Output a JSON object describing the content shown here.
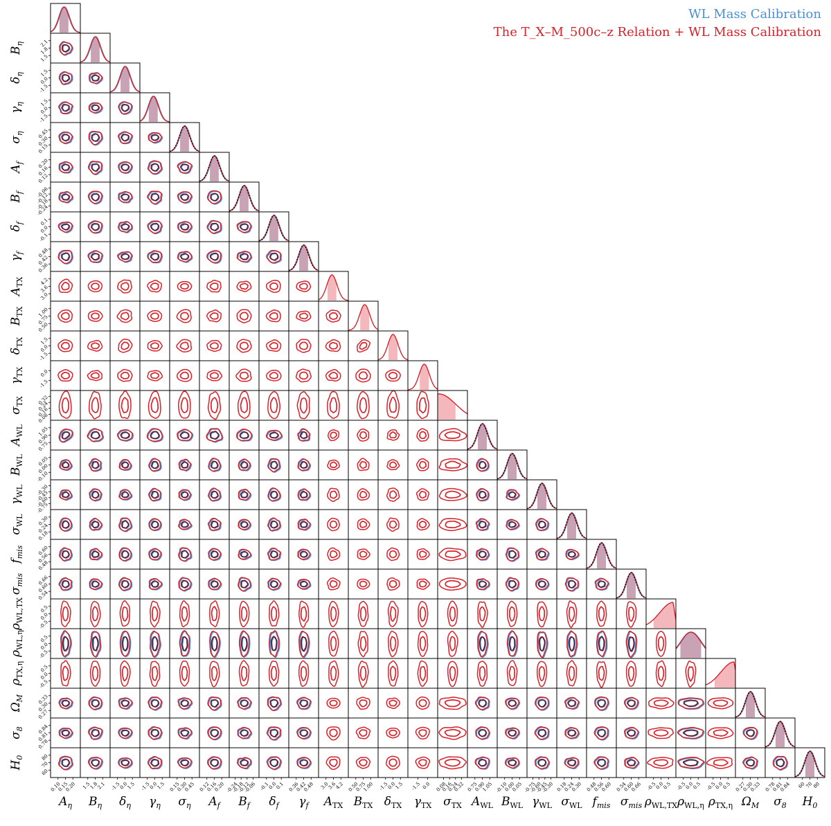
{
  "chart_data": {
    "type": "corner",
    "legend": {
      "placement": "top-right",
      "entries": [
        {
          "label": "WL Mass Calibration",
          "color": "#4a8fd1"
        },
        {
          "label": "The T_X–M_500c–z Relation + WL Mass Calibration",
          "color": "#d6222a"
        }
      ]
    },
    "parameters": [
      {
        "symbol": "A",
        "sub": "η",
        "ticks": [
          "0.10",
          "0.15",
          "0.20"
        ]
      },
      {
        "symbol": "B",
        "sub": "η",
        "ticks": [
          "1.5",
          "1.8",
          "2.1"
        ]
      },
      {
        "symbol": "δ",
        "sub": "η",
        "ticks": [
          "-1.5",
          "0.0",
          "1.5"
        ]
      },
      {
        "symbol": "γ",
        "sub": "η",
        "ticks": [
          "-1.5",
          "0.0",
          "1.5"
        ]
      },
      {
        "symbol": "σ",
        "sub": "η",
        "ticks": [
          "0.15",
          "0.30",
          "0.45"
        ]
      },
      {
        "symbol": "A",
        "sub": "f",
        "ticks": [
          "0.12",
          "0.16",
          "0.20"
        ]
      },
      {
        "symbol": "B",
        "sub": "f",
        "ticks": [
          "-0.24",
          "-0.18",
          "-0.12",
          "-0.06"
        ]
      },
      {
        "symbol": "δ",
        "sub": "f",
        "ticks": [
          "-0.1",
          "0.0",
          "0.1"
        ]
      },
      {
        "symbol": "γ",
        "sub": "f",
        "ticks": [
          "0.36",
          "0.42",
          "0.48"
        ]
      },
      {
        "symbol": "A",
        "sub": "TX",
        "ticks": [
          "3.0",
          "3.6",
          "4.2"
        ]
      },
      {
        "symbol": "B",
        "sub": "TX",
        "ticks": [
          "0.50",
          "0.75",
          "1.00"
        ]
      },
      {
        "symbol": "δ",
        "sub": "TX",
        "ticks": [
          "-1.5",
          "0.0",
          "1.5"
        ]
      },
      {
        "symbol": "γ",
        "sub": "TX",
        "ticks": [
          "-1.5",
          "0.0"
        ]
      },
      {
        "symbol": "σ",
        "sub": "TX",
        "ticks": [
          "0.08",
          "0.16",
          "0.24",
          "0.32"
        ]
      },
      {
        "symbol": "A",
        "sub": "WL",
        "ticks": [
          "0.75",
          "0.90",
          "1.05"
        ]
      },
      {
        "symbol": "B",
        "sub": "WL",
        "ticks": [
          "-0.10",
          "0.00",
          "0.05"
        ]
      },
      {
        "symbol": "γ",
        "sub": "WL",
        "ticks": [
          "-0.75",
          "-0.60",
          "-0.45",
          "-0.30"
        ]
      },
      {
        "symbol": "σ",
        "sub": "WL",
        "ticks": [
          "0.18",
          "0.24",
          "0.30"
        ]
      },
      {
        "symbol": "f",
        "sub": "mis",
        "ticks": [
          "0.48",
          "0.56",
          "0.60"
        ]
      },
      {
        "symbol": "σ",
        "sub": "mis",
        "ticks": [
          "0.54",
          "0.60",
          "0.66"
        ]
      },
      {
        "symbol": "ρ",
        "sub": "WL,TX",
        "ticks": [
          "-0.5",
          "0.0",
          "0.5"
        ]
      },
      {
        "symbol": "ρ",
        "sub": "WL,η",
        "ticks": [
          "-0.5",
          "0.0",
          "0.5"
        ]
      },
      {
        "symbol": "ρ",
        "sub": "TX,η",
        "ticks": [
          "-0.5",
          "0.0",
          "0.5"
        ]
      },
      {
        "symbol": "Ω",
        "sub": "M",
        "ticks": [
          "0.27",
          "0.30",
          "0.33"
        ]
      },
      {
        "symbol": "σ",
        "sub": "8",
        "ticks": [
          "0.78",
          "0.81",
          "0.84"
        ]
      },
      {
        "symbol": "H",
        "sub": "0",
        "ticks": [
          "60",
          "70",
          "80"
        ]
      }
    ],
    "blue_absent_params": [
      9,
      10,
      11,
      12,
      13,
      20,
      22
    ],
    "prior_dotted_params": [
      4,
      5,
      6,
      7,
      8,
      14,
      15,
      16,
      17,
      18,
      19,
      23,
      24,
      25
    ],
    "marginal_peak_fraction": [
      0.45,
      0.5,
      0.5,
      0.45,
      0.5,
      0.5,
      0.5,
      0.5,
      0.5,
      0.45,
      0.55,
      0.5,
      0.55,
      0.05,
      0.5,
      0.5,
      0.5,
      0.5,
      0.5,
      0.5,
      0.8,
      0.5,
      0.85,
      0.5,
      0.5,
      0.5
    ],
    "colors": {
      "blue": "#4a8fd1",
      "red": "#d6222a",
      "dark": "#5a1a2e",
      "fill": "#f4b8bc",
      "prior": "#000000"
    }
  }
}
